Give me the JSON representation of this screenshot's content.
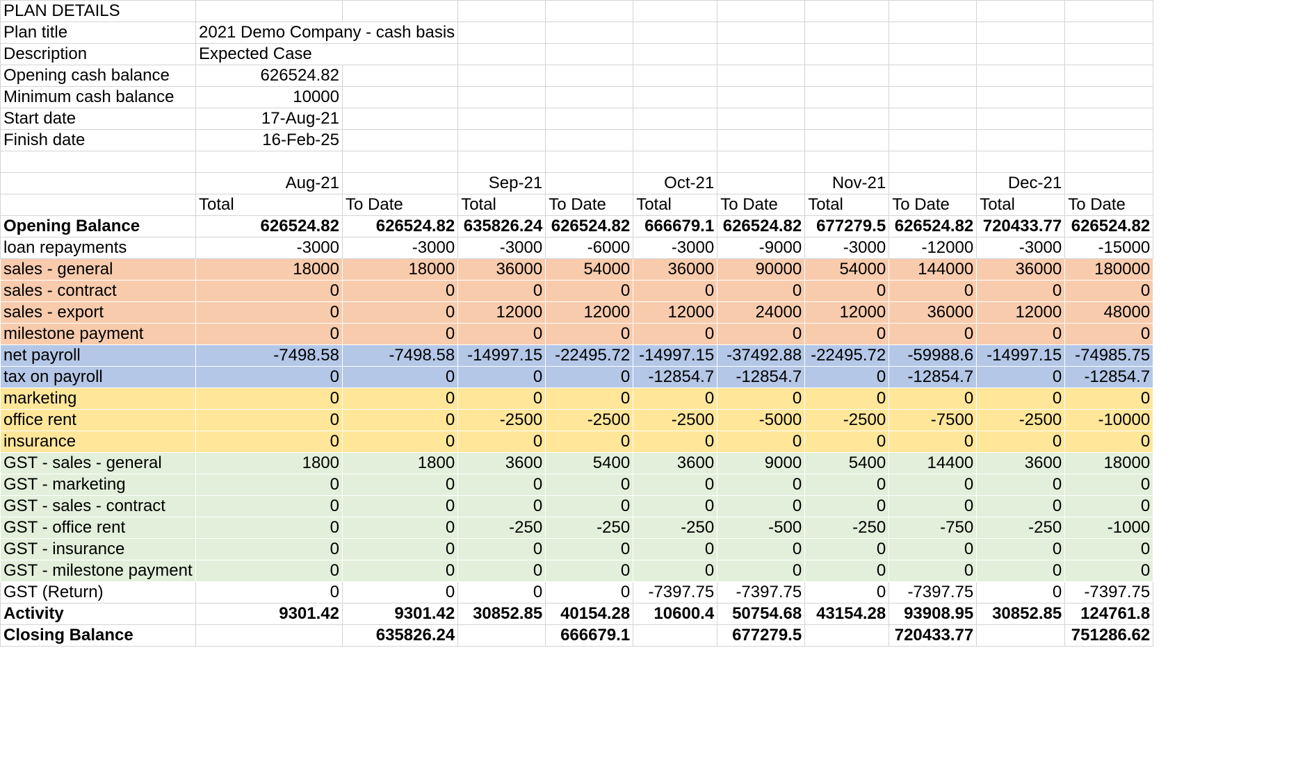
{
  "plan": {
    "header": "PLAN DETAILS",
    "rows": [
      {
        "label": "Plan title",
        "value": "2021 Demo Company - cash basis",
        "align": "left"
      },
      {
        "label": "Description",
        "value": "Expected Case",
        "align": "left"
      },
      {
        "label": "Opening cash balance",
        "value": "626524.82",
        "align": "right"
      },
      {
        "label": "Minimum cash balance",
        "value": "10000",
        "align": "right"
      },
      {
        "label": "Start date",
        "value": "17-Aug-21",
        "align": "right"
      },
      {
        "label": "Finish date",
        "value": "16-Feb-25",
        "align": "right"
      }
    ]
  },
  "months": [
    "Aug-21",
    "Sep-21",
    "Oct-21",
    "Nov-21",
    "Dec-21"
  ],
  "subheaders": [
    "Total",
    "To Date"
  ],
  "cashflow": [
    {
      "label": "Opening Balance",
      "style": "bold",
      "values": [
        "626524.82",
        "626524.82",
        "635826.24",
        "626524.82",
        "666679.1",
        "626524.82",
        "677279.5",
        "626524.82",
        "720433.77",
        "626524.82"
      ]
    },
    {
      "label": "loan repayments",
      "style": "",
      "values": [
        "-3000",
        "-3000",
        "-3000",
        "-6000",
        "-3000",
        "-9000",
        "-3000",
        "-12000",
        "-3000",
        "-15000"
      ]
    },
    {
      "label": "sales - general",
      "style": "bg-orange",
      "values": [
        "18000",
        "18000",
        "36000",
        "54000",
        "36000",
        "90000",
        "54000",
        "144000",
        "36000",
        "180000"
      ]
    },
    {
      "label": "sales - contract",
      "style": "bg-orange",
      "values": [
        "0",
        "0",
        "0",
        "0",
        "0",
        "0",
        "0",
        "0",
        "0",
        "0"
      ]
    },
    {
      "label": "sales - export",
      "style": "bg-orange",
      "values": [
        "0",
        "0",
        "12000",
        "12000",
        "12000",
        "24000",
        "12000",
        "36000",
        "12000",
        "48000"
      ]
    },
    {
      "label": "milestone payment",
      "style": "bg-orange",
      "values": [
        "0",
        "0",
        "0",
        "0",
        "0",
        "0",
        "0",
        "0",
        "0",
        "0"
      ]
    },
    {
      "label": "net payroll",
      "style": "bg-blue",
      "values": [
        "-7498.58",
        "-7498.58",
        "-14997.15",
        "-22495.72",
        "-14997.15",
        "-37492.88",
        "-22495.72",
        "-59988.6",
        "-14997.15",
        "-74985.75"
      ]
    },
    {
      "label": "tax on payroll",
      "style": "bg-blue",
      "values": [
        "0",
        "0",
        "0",
        "0",
        "-12854.7",
        "-12854.7",
        "0",
        "-12854.7",
        "0",
        "-12854.7"
      ]
    },
    {
      "label": "marketing",
      "style": "bg-yellow",
      "values": [
        "0",
        "0",
        "0",
        "0",
        "0",
        "0",
        "0",
        "0",
        "0",
        "0"
      ]
    },
    {
      "label": "office rent",
      "style": "bg-yellow",
      "values": [
        "0",
        "0",
        "-2500",
        "-2500",
        "-2500",
        "-5000",
        "-2500",
        "-7500",
        "-2500",
        "-10000"
      ]
    },
    {
      "label": "insurance",
      "style": "bg-yellow",
      "values": [
        "0",
        "0",
        "0",
        "0",
        "0",
        "0",
        "0",
        "0",
        "0",
        "0"
      ]
    },
    {
      "label": "GST - sales - general",
      "style": "bg-green",
      "values": [
        "1800",
        "1800",
        "3600",
        "5400",
        "3600",
        "9000",
        "5400",
        "14400",
        "3600",
        "18000"
      ]
    },
    {
      "label": "GST - marketing",
      "style": "bg-green",
      "values": [
        "0",
        "0",
        "0",
        "0",
        "0",
        "0",
        "0",
        "0",
        "0",
        "0"
      ]
    },
    {
      "label": "GST - sales - contract",
      "style": "bg-green",
      "values": [
        "0",
        "0",
        "0",
        "0",
        "0",
        "0",
        "0",
        "0",
        "0",
        "0"
      ]
    },
    {
      "label": "GST - office rent",
      "style": "bg-green",
      "values": [
        "0",
        "0",
        "-250",
        "-250",
        "-250",
        "-500",
        "-250",
        "-750",
        "-250",
        "-1000"
      ]
    },
    {
      "label": "GST - insurance",
      "style": "bg-green",
      "values": [
        "0",
        "0",
        "0",
        "0",
        "0",
        "0",
        "0",
        "0",
        "0",
        "0"
      ]
    },
    {
      "label": "GST - milestone payment",
      "style": "bg-green",
      "values": [
        "0",
        "0",
        "0",
        "0",
        "0",
        "0",
        "0",
        "0",
        "0",
        "0"
      ]
    },
    {
      "label": "GST (Return)",
      "style": "",
      "values": [
        "0",
        "0",
        "0",
        "0",
        "-7397.75",
        "-7397.75",
        "0",
        "-7397.75",
        "0",
        "-7397.75"
      ]
    },
    {
      "label": "Activity",
      "style": "bold",
      "values": [
        "9301.42",
        "9301.42",
        "30852.85",
        "40154.28",
        "10600.4",
        "50754.68",
        "43154.28",
        "93908.95",
        "30852.85",
        "124761.8"
      ]
    },
    {
      "label": "Closing Balance",
      "style": "bold",
      "values": [
        "",
        "635826.24",
        "",
        "666679.1",
        "",
        "677279.5",
        "",
        "720433.77",
        "",
        "751286.62"
      ]
    }
  ],
  "colors": {
    "orange": "#f8cbad",
    "blue": "#b4c7e7",
    "yellow": "#ffe699",
    "green": "#e2efda",
    "grid": "#d4d4d4"
  }
}
